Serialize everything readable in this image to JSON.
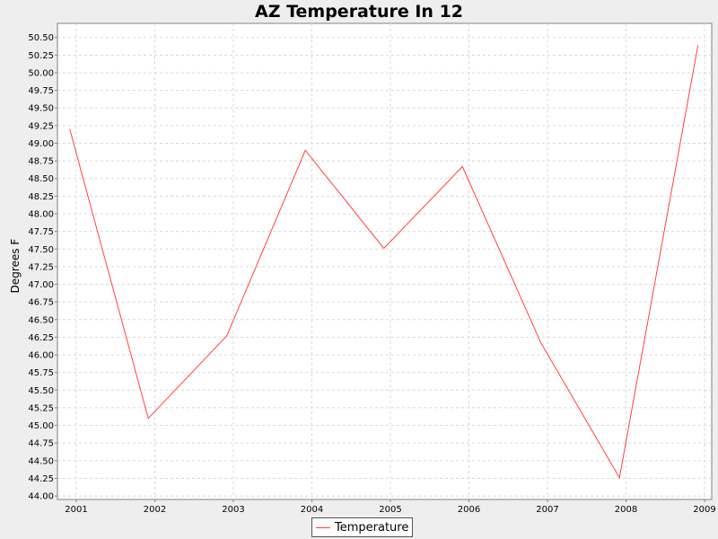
{
  "chart_data": {
    "type": "line",
    "title": "AZ Temperature In 12",
    "xlabel": "",
    "ylabel": "Degrees F",
    "x": [
      2001,
      2002,
      2003,
      2004,
      2005,
      2006,
      2007,
      2008,
      2009
    ],
    "xlim": [
      2001,
      2009
    ],
    "ylim": [
      43.95,
      50.7
    ],
    "y_ticks": [
      "44.00",
      "44.25",
      "44.50",
      "44.75",
      "45.00",
      "45.25",
      "45.50",
      "45.75",
      "46.00",
      "46.25",
      "46.50",
      "46.75",
      "47.00",
      "47.25",
      "47.50",
      "47.75",
      "48.00",
      "48.25",
      "48.50",
      "48.75",
      "49.00",
      "49.25",
      "49.50",
      "49.75",
      "50.00",
      "50.25",
      "50.50"
    ],
    "x_ticks": [
      "2001",
      "2002",
      "2003",
      "2004",
      "2005",
      "2006",
      "2007",
      "2008",
      "2009"
    ],
    "series": [
      {
        "name": "Temperature",
        "color": "#ff4040",
        "points": [
          {
            "x": "2000-12",
            "y": 49.2
          },
          {
            "x": "2001-12",
            "y": 45.1
          },
          {
            "x": "2002-12",
            "y": 46.27
          },
          {
            "x": "2003-12",
            "y": 48.9
          },
          {
            "x": "2004-12",
            "y": 47.51
          },
          {
            "x": "2005-12",
            "y": 48.67
          },
          {
            "x": "2006-12",
            "y": 46.17
          },
          {
            "x": "2007-12",
            "y": 44.26
          },
          {
            "x": "2008-12",
            "y": 50.39
          }
        ]
      }
    ],
    "grid": true,
    "legend": "bottom-center"
  }
}
